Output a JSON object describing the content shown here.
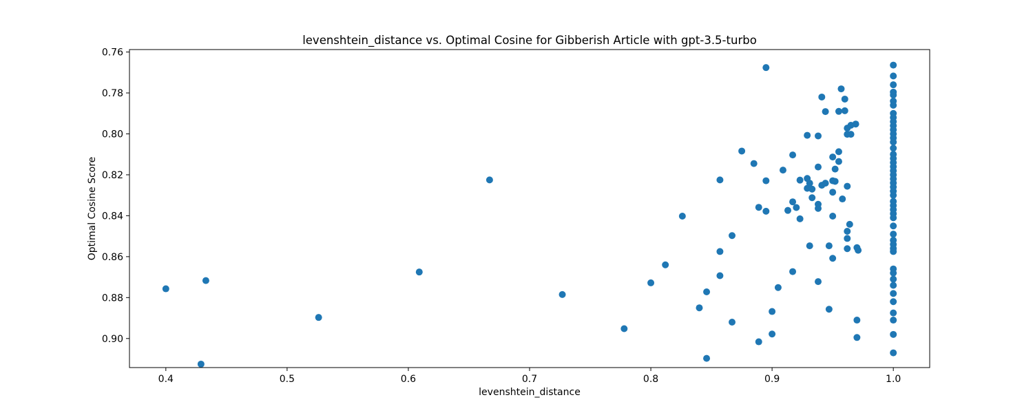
{
  "chart_data": {
    "type": "scatter",
    "title": "levenshtein_distance vs. Optimal Cosine for Gibberish Article with gpt-3.5-turbo",
    "xlabel": "levenshtein_distance",
    "ylabel": "Optimal Cosine Score",
    "xlim": [
      0.37,
      1.03
    ],
    "ylim": [
      0.9142,
      0.7588
    ],
    "y_inverted": true,
    "grid": false,
    "legend": "none",
    "color": "#1f77b4",
    "x_ticks": [
      "0.4",
      "0.5",
      "0.6",
      "0.7",
      "0.8",
      "0.9",
      "1.0"
    ],
    "y_ticks": [
      "0.76",
      "0.78",
      "0.80",
      "0.82",
      "0.84",
      "0.86",
      "0.88",
      "0.90"
    ],
    "points": [
      {
        "x": 0.4,
        "y": 0.8757
      },
      {
        "x": 0.429,
        "y": 0.9125
      },
      {
        "x": 0.433,
        "y": 0.8717
      },
      {
        "x": 0.526,
        "y": 0.8897
      },
      {
        "x": 0.609,
        "y": 0.8675
      },
      {
        "x": 0.667,
        "y": 0.8225
      },
      {
        "x": 0.727,
        "y": 0.8785
      },
      {
        "x": 0.778,
        "y": 0.8952
      },
      {
        "x": 0.8,
        "y": 0.8728
      },
      {
        "x": 0.812,
        "y": 0.864
      },
      {
        "x": 0.826,
        "y": 0.8402
      },
      {
        "x": 0.84,
        "y": 0.885
      },
      {
        "x": 0.846,
        "y": 0.8772
      },
      {
        "x": 0.846,
        "y": 0.9097
      },
      {
        "x": 0.857,
        "y": 0.8225
      },
      {
        "x": 0.857,
        "y": 0.8575
      },
      {
        "x": 0.857,
        "y": 0.8693
      },
      {
        "x": 0.867,
        "y": 0.8497
      },
      {
        "x": 0.867,
        "y": 0.892
      },
      {
        "x": 0.875,
        "y": 0.8084
      },
      {
        "x": 0.885,
        "y": 0.8145
      },
      {
        "x": 0.889,
        "y": 0.8359
      },
      {
        "x": 0.889,
        "y": 0.9016
      },
      {
        "x": 0.895,
        "y": 0.7676
      },
      {
        "x": 0.895,
        "y": 0.8229
      },
      {
        "x": 0.895,
        "y": 0.8378
      },
      {
        "x": 0.9,
        "y": 0.8868
      },
      {
        "x": 0.9,
        "y": 0.8978
      },
      {
        "x": 0.905,
        "y": 0.8751
      },
      {
        "x": 0.909,
        "y": 0.8177
      },
      {
        "x": 0.913,
        "y": 0.8374
      },
      {
        "x": 0.917,
        "y": 0.8103
      },
      {
        "x": 0.917,
        "y": 0.8332
      },
      {
        "x": 0.917,
        "y": 0.8673
      },
      {
        "x": 0.92,
        "y": 0.836
      },
      {
        "x": 0.923,
        "y": 0.8226
      },
      {
        "x": 0.923,
        "y": 0.8415
      },
      {
        "x": 0.929,
        "y": 0.8007
      },
      {
        "x": 0.929,
        "y": 0.8218
      },
      {
        "x": 0.929,
        "y": 0.8266
      },
      {
        "x": 0.931,
        "y": 0.8241
      },
      {
        "x": 0.931,
        "y": 0.8547
      },
      {
        "x": 0.933,
        "y": 0.827
      },
      {
        "x": 0.933,
        "y": 0.8312
      },
      {
        "x": 0.938,
        "y": 0.801
      },
      {
        "x": 0.938,
        "y": 0.8162
      },
      {
        "x": 0.938,
        "y": 0.8344
      },
      {
        "x": 0.938,
        "y": 0.8364
      },
      {
        "x": 0.938,
        "y": 0.8722
      },
      {
        "x": 0.941,
        "y": 0.782
      },
      {
        "x": 0.941,
        "y": 0.8251
      },
      {
        "x": 0.944,
        "y": 0.7891
      },
      {
        "x": 0.944,
        "y": 0.8241
      },
      {
        "x": 0.947,
        "y": 0.8547
      },
      {
        "x": 0.947,
        "y": 0.8857
      },
      {
        "x": 0.95,
        "y": 0.8113
      },
      {
        "x": 0.95,
        "y": 0.8229
      },
      {
        "x": 0.95,
        "y": 0.8285
      },
      {
        "x": 0.95,
        "y": 0.8402
      },
      {
        "x": 0.95,
        "y": 0.8608
      },
      {
        "x": 0.952,
        "y": 0.8172
      },
      {
        "x": 0.952,
        "y": 0.8232
      },
      {
        "x": 0.955,
        "y": 0.789
      },
      {
        "x": 0.955,
        "y": 0.8087
      },
      {
        "x": 0.955,
        "y": 0.8135
      },
      {
        "x": 0.957,
        "y": 0.778
      },
      {
        "x": 0.958,
        "y": 0.8318
      },
      {
        "x": 0.96,
        "y": 0.783
      },
      {
        "x": 0.96,
        "y": 0.7887
      },
      {
        "x": 0.962,
        "y": 0.7972
      },
      {
        "x": 0.962,
        "y": 0.8002
      },
      {
        "x": 0.962,
        "y": 0.8256
      },
      {
        "x": 0.962,
        "y": 0.8476
      },
      {
        "x": 0.962,
        "y": 0.8511
      },
      {
        "x": 0.962,
        "y": 0.8561
      },
      {
        "x": 0.964,
        "y": 0.8442
      },
      {
        "x": 0.965,
        "y": 0.7958
      },
      {
        "x": 0.965,
        "y": 0.8002
      },
      {
        "x": 0.969,
        "y": 0.7952
      },
      {
        "x": 0.97,
        "y": 0.8556
      },
      {
        "x": 0.97,
        "y": 0.891
      },
      {
        "x": 0.97,
        "y": 0.8995
      },
      {
        "x": 0.971,
        "y": 0.8569
      },
      {
        "x": 1.0,
        "y": 0.7664
      },
      {
        "x": 1.0,
        "y": 0.7717
      },
      {
        "x": 1.0,
        "y": 0.776
      },
      {
        "x": 1.0,
        "y": 0.7796
      },
      {
        "x": 1.0,
        "y": 0.781
      },
      {
        "x": 1.0,
        "y": 0.784
      },
      {
        "x": 1.0,
        "y": 0.786
      },
      {
        "x": 1.0,
        "y": 0.79
      },
      {
        "x": 1.0,
        "y": 0.792
      },
      {
        "x": 1.0,
        "y": 0.794
      },
      {
        "x": 1.0,
        "y": 0.796
      },
      {
        "x": 1.0,
        "y": 0.798
      },
      {
        "x": 1.0,
        "y": 0.8
      },
      {
        "x": 1.0,
        "y": 0.802
      },
      {
        "x": 1.0,
        "y": 0.804
      },
      {
        "x": 1.0,
        "y": 0.807
      },
      {
        "x": 1.0,
        "y": 0.81
      },
      {
        "x": 1.0,
        "y": 0.812
      },
      {
        "x": 1.0,
        "y": 0.814
      },
      {
        "x": 1.0,
        "y": 0.816
      },
      {
        "x": 1.0,
        "y": 0.818
      },
      {
        "x": 1.0,
        "y": 0.82
      },
      {
        "x": 1.0,
        "y": 0.822
      },
      {
        "x": 1.0,
        "y": 0.824
      },
      {
        "x": 1.0,
        "y": 0.826
      },
      {
        "x": 1.0,
        "y": 0.828
      },
      {
        "x": 1.0,
        "y": 0.83
      },
      {
        "x": 1.0,
        "y": 0.833
      },
      {
        "x": 1.0,
        "y": 0.835
      },
      {
        "x": 1.0,
        "y": 0.837
      },
      {
        "x": 1.0,
        "y": 0.839
      },
      {
        "x": 1.0,
        "y": 0.841
      },
      {
        "x": 1.0,
        "y": 0.845
      },
      {
        "x": 1.0,
        "y": 0.849
      },
      {
        "x": 1.0,
        "y": 0.852
      },
      {
        "x": 1.0,
        "y": 0.854
      },
      {
        "x": 1.0,
        "y": 0.856
      },
      {
        "x": 1.0,
        "y": 0.8575
      },
      {
        "x": 1.0,
        "y": 0.866
      },
      {
        "x": 1.0,
        "y": 0.868
      },
      {
        "x": 1.0,
        "y": 0.871
      },
      {
        "x": 1.0,
        "y": 0.874
      },
      {
        "x": 1.0,
        "y": 0.878
      },
      {
        "x": 1.0,
        "y": 0.882
      },
      {
        "x": 1.0,
        "y": 0.8875
      },
      {
        "x": 1.0,
        "y": 0.891
      },
      {
        "x": 1.0,
        "y": 0.898
      },
      {
        "x": 1.0,
        "y": 0.907
      }
    ]
  }
}
